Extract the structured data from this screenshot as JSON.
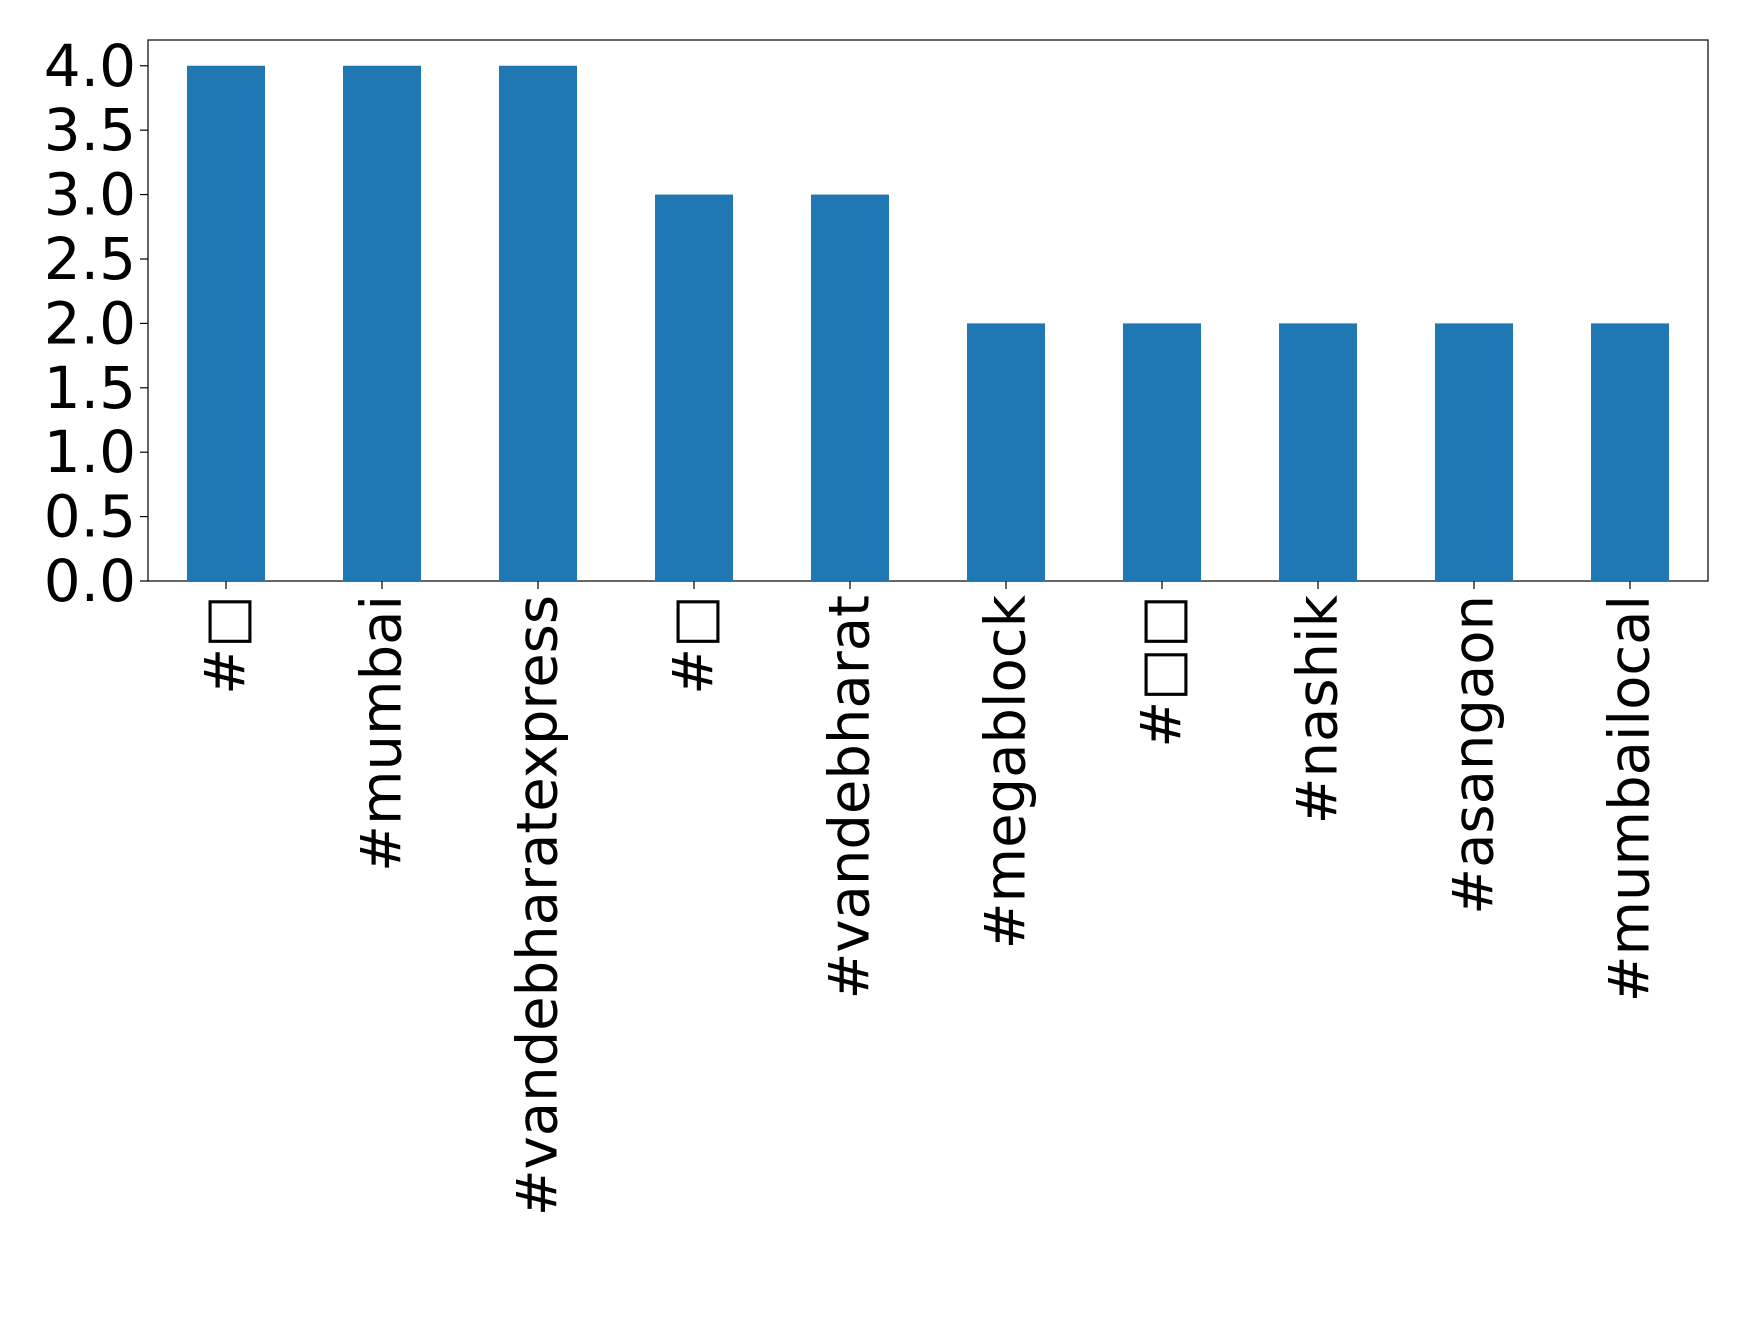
{
  "chart_data": {
    "type": "bar",
    "categories": [
      "#□",
      "#mumbai",
      "#vandebharatexpress",
      "#□",
      "#vandebharat",
      "#megablock",
      "#□□",
      "#nashik",
      "#asangaon",
      "#mumbailocal"
    ],
    "values": [
      4,
      4,
      4,
      3,
      3,
      2,
      2,
      2,
      2,
      2
    ],
    "color": "#1f77b4",
    "ylim": [
      0,
      4.2
    ],
    "yticks": [
      {
        "value": 0,
        "label": "0.0"
      },
      {
        "value": 0.5,
        "label": "0.5"
      },
      {
        "value": 1,
        "label": "1.0"
      },
      {
        "value": 1.5,
        "label": "1.5"
      },
      {
        "value": 2,
        "label": "2.0"
      },
      {
        "value": 2.5,
        "label": "2.5"
      },
      {
        "value": 3,
        "label": "3.0"
      },
      {
        "value": 3.5,
        "label": "3.5"
      },
      {
        "value": 4,
        "label": "4.0"
      }
    ],
    "grid": false
  }
}
